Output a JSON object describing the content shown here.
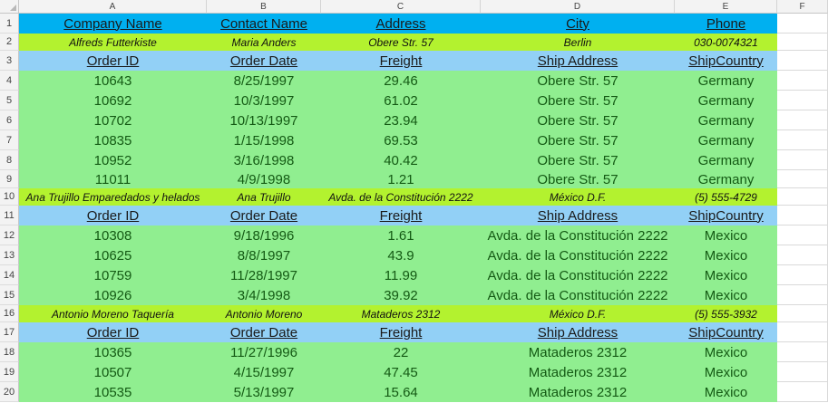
{
  "columns": [
    "A",
    "B",
    "C",
    "D",
    "E",
    "F"
  ],
  "header": [
    "Company Name",
    "Contact Name",
    "Address",
    "City",
    "Phone"
  ],
  "subheader": [
    "Order ID",
    "Order Date",
    "Freight",
    "Ship Address",
    "ShipCountry"
  ],
  "rows": [
    {
      "num": "1",
      "type": "head"
    },
    {
      "num": "2",
      "type": "cust",
      "cells": [
        "Alfreds Futterkiste",
        "Maria Anders",
        "Obere Str. 57",
        "Berlin",
        "030-0074321"
      ]
    },
    {
      "num": "3",
      "type": "sub"
    },
    {
      "num": "4",
      "type": "data",
      "cells": [
        "10643",
        "8/25/1997",
        "29.46",
        "Obere Str. 57",
        "Germany"
      ]
    },
    {
      "num": "5",
      "type": "data",
      "cells": [
        "10692",
        "10/3/1997",
        "61.02",
        "Obere Str. 57",
        "Germany"
      ]
    },
    {
      "num": "6",
      "type": "data",
      "cells": [
        "10702",
        "10/13/1997",
        "23.94",
        "Obere Str. 57",
        "Germany"
      ]
    },
    {
      "num": "7",
      "type": "data",
      "cells": [
        "10835",
        "1/15/1998",
        "69.53",
        "Obere Str. 57",
        "Germany"
      ]
    },
    {
      "num": "8",
      "type": "data",
      "cells": [
        "10952",
        "3/16/1998",
        "40.42",
        "Obere Str. 57",
        "Germany"
      ]
    },
    {
      "num": "9",
      "type": "data",
      "cells": [
        "11011",
        "4/9/1998",
        "1.21",
        "Obere Str. 57",
        "Germany"
      ]
    },
    {
      "num": "10",
      "type": "cust",
      "cells": [
        "Ana Trujillo Emparedados y helados",
        "Ana Trujillo",
        "Avda. de la Constitución 2222",
        "México D.F.",
        "(5) 555-4729"
      ]
    },
    {
      "num": "11",
      "type": "sub"
    },
    {
      "num": "12",
      "type": "data",
      "cells": [
        "10308",
        "9/18/1996",
        "1.61",
        "Avda. de la Constitución 2222",
        "Mexico"
      ]
    },
    {
      "num": "13",
      "type": "data",
      "cells": [
        "10625",
        "8/8/1997",
        "43.9",
        "Avda. de la Constitución 2222",
        "Mexico"
      ]
    },
    {
      "num": "14",
      "type": "data",
      "cells": [
        "10759",
        "11/28/1997",
        "11.99",
        "Avda. de la Constitución 2222",
        "Mexico"
      ]
    },
    {
      "num": "15",
      "type": "data",
      "cells": [
        "10926",
        "3/4/1998",
        "39.92",
        "Avda. de la Constitución 2222",
        "Mexico"
      ]
    },
    {
      "num": "16",
      "type": "cust",
      "cells": [
        "Antonio Moreno Taquería",
        "Antonio Moreno",
        "Mataderos  2312",
        "México D.F.",
        "(5) 555-3932"
      ]
    },
    {
      "num": "17",
      "type": "sub"
    },
    {
      "num": "18",
      "type": "data",
      "cells": [
        "10365",
        "11/27/1996",
        "22",
        "Mataderos  2312",
        "Mexico"
      ]
    },
    {
      "num": "19",
      "type": "data",
      "cells": [
        "10507",
        "4/15/1997",
        "47.45",
        "Mataderos  2312",
        "Mexico"
      ]
    },
    {
      "num": "20",
      "type": "data",
      "cells": [
        "10535",
        "5/13/1997",
        "15.64",
        "Mataderos  2312",
        "Mexico"
      ]
    }
  ]
}
